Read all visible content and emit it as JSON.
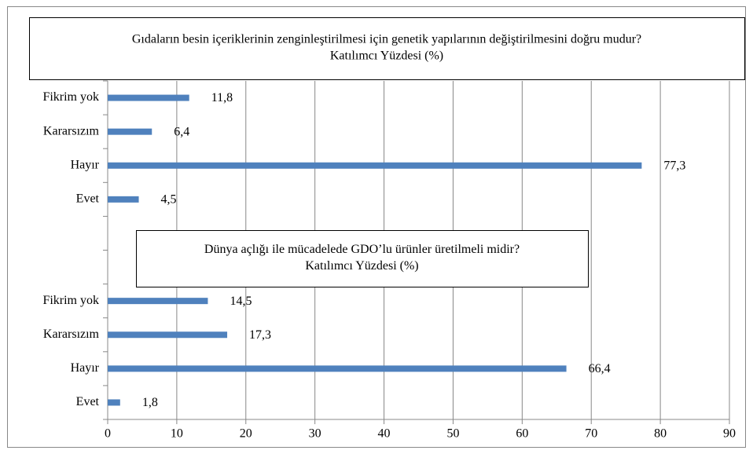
{
  "chart_data": {
    "type": "barh",
    "categories": [
      "Fikrim yok",
      "Kararsızım",
      "Hayır",
      "Evet",
      null,
      null,
      "Fikrim yok",
      "Kararsızım",
      "Hayır",
      "Evet"
    ],
    "values": [
      11.8,
      6.4,
      77.3,
      4.5,
      null,
      null,
      14.5,
      17.3,
      66.4,
      1.8
    ],
    "value_labels": [
      "11,8",
      "6,4",
      "77,3",
      "4,5",
      null,
      null,
      "14,5",
      "17,3",
      "66,4",
      "1,8"
    ],
    "color": "#4f81bd",
    "xlim": [
      0,
      90
    ],
    "xticks": [
      0,
      10,
      20,
      30,
      40,
      50,
      60,
      70,
      80,
      90
    ],
    "grid": true,
    "annotations": [
      {
        "lines": [
          "Gıdaların besin içeriklerinin zenginleştirilmesi için genetik yapılarının değiştirilmesini doğru mudur?",
          "Katılımcı Yüzdesi (%)"
        ]
      },
      {
        "lines": [
          "Dünya açlığı ile mücadelede GDO’lu ürünler üretilmeli midir?",
          "Katılımcı Yüzdesi (%)"
        ]
      }
    ]
  }
}
